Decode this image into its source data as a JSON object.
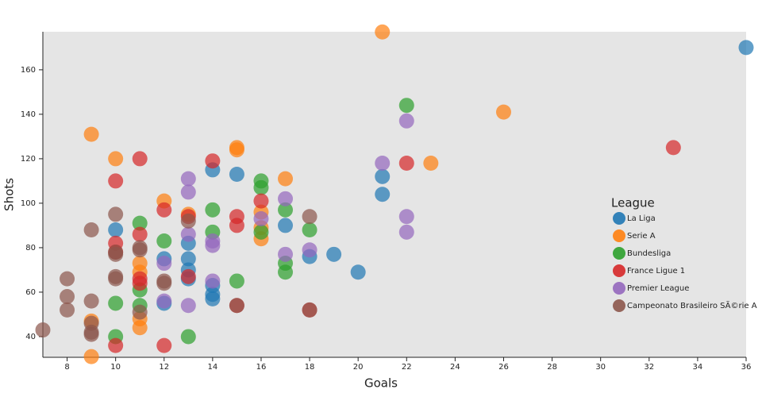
{
  "chart_data": {
    "type": "scatter",
    "x_label": "Goals",
    "y_label": "Shots",
    "legend_title": "League",
    "xlim": [
      7,
      36
    ],
    "ylim": [
      30.7,
      177.1
    ],
    "xticks": [
      8,
      10,
      12,
      14,
      16,
      18,
      20,
      22,
      24,
      26,
      28,
      30,
      32,
      34,
      36
    ],
    "yticks": [
      40,
      60,
      80,
      100,
      120,
      140,
      160
    ],
    "legend": "right",
    "series": [
      {
        "name": "La Liga",
        "color": "#1f77b4",
        "x": [
          36,
          10,
          14,
          15,
          21,
          21,
          17,
          18,
          19,
          20,
          12,
          13,
          13,
          13,
          13,
          14,
          14,
          14,
          12
        ],
        "values": [
          170,
          88,
          115,
          113,
          112,
          104,
          90,
          76,
          77,
          69,
          75,
          75,
          82,
          70,
          66,
          59,
          57,
          63,
          55
        ]
      },
      {
        "name": "Serie A",
        "color": "#ff7f0e",
        "x": [
          21,
          9,
          26,
          15,
          15,
          10,
          23,
          12,
          17,
          16,
          16,
          16,
          11,
          11,
          11,
          11,
          9,
          9,
          13
        ],
        "values": [
          177,
          131,
          141,
          125,
          124,
          120,
          118,
          101,
          111,
          96,
          89,
          84,
          73,
          69,
          48,
          44,
          47,
          31,
          95
        ]
      },
      {
        "name": "Bundesliga",
        "color": "#2ca02c",
        "x": [
          22,
          16,
          16,
          14,
          17,
          11,
          14,
          16,
          18,
          12,
          17,
          17,
          15,
          11,
          10,
          11,
          10,
          13
        ],
        "values": [
          144,
          110,
          107,
          97,
          97,
          91,
          87,
          87,
          88,
          83,
          73,
          69,
          65,
          61,
          55,
          54,
          40,
          40
        ]
      },
      {
        "name": "France Ligue 1",
        "color": "#d62728",
        "x": [
          33,
          11,
          14,
          22,
          10,
          16,
          12,
          13,
          15,
          15,
          11,
          10,
          10,
          11,
          11,
          13,
          10,
          12,
          15,
          18
        ],
        "values": [
          125,
          120,
          119,
          118,
          110,
          101,
          97,
          94,
          94,
          90,
          86,
          82,
          78,
          66,
          64,
          67,
          36,
          36,
          54,
          52
        ]
      },
      {
        "name": "Premier League",
        "color": "#9467bd",
        "x": [
          22,
          21,
          13,
          13,
          17,
          22,
          22,
          16,
          14,
          14,
          17,
          18,
          12,
          14,
          13,
          12,
          13
        ],
        "values": [
          137,
          118,
          111,
          105,
          102,
          94,
          87,
          93,
          83,
          81,
          77,
          79,
          73,
          65,
          86,
          56,
          54
        ]
      },
      {
        "name": "Campeonato Brasileiro SÃ©rie A",
        "color": "#8c564b",
        "x": [
          7,
          8,
          8,
          8,
          9,
          9,
          9,
          9,
          9,
          10,
          10,
          10,
          10,
          10,
          11,
          11,
          11,
          12,
          12,
          13,
          18,
          15,
          18
        ],
        "values": [
          43,
          66,
          58,
          52,
          88,
          56,
          46,
          42,
          41,
          95,
          78,
          77,
          67,
          66,
          80,
          79,
          51,
          65,
          64,
          92,
          94,
          54,
          52
        ]
      }
    ]
  }
}
